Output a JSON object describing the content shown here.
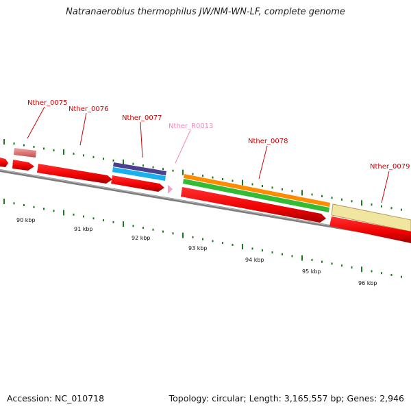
{
  "title": "Natranaerobius thermophilus JW/NM-WN-LF, complete genome",
  "footer": {
    "accession": "Accession: NC_010718",
    "summary": "Topology: circular; Length: 3,165,557 bp; Genes: 2,946"
  },
  "colors": {
    "cds": "#ff0000",
    "backbone": "#888888",
    "tick": "#1a7a1a",
    "label": "#cc0000",
    "rna_label": "#ee88bb"
  },
  "kbp_labels": [
    "90 kbp",
    "91 kbp",
    "92 kbp",
    "93 kbp",
    "94 kbp",
    "95 kbp",
    "96 kbp"
  ],
  "gene_labels": [
    "Nther_0075",
    "Nther_0076",
    "Nther_0077",
    "Nther_R0013",
    "Nther_0078",
    "Nther_0079"
  ]
}
